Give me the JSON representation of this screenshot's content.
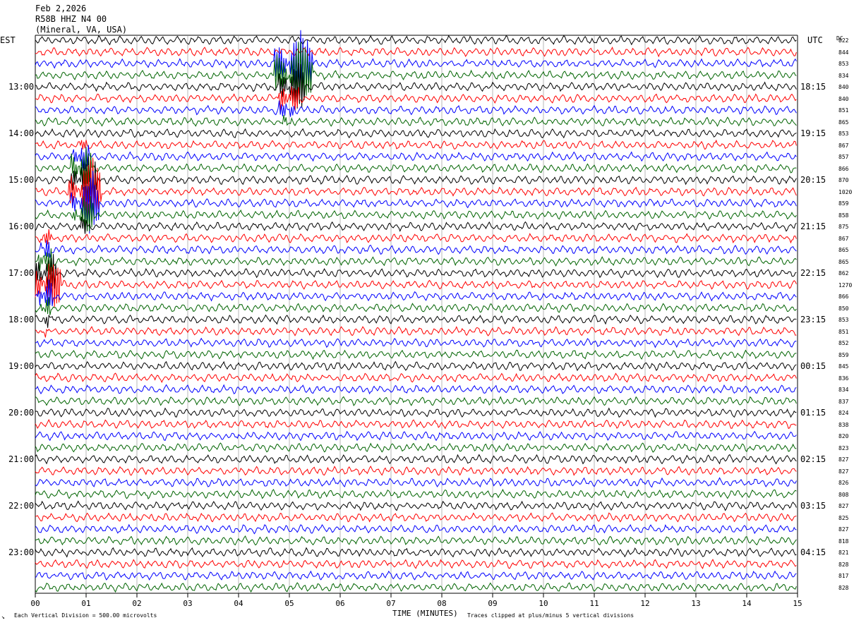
{
  "header": {
    "date": "Feb 2,2026",
    "station": "R58B HHZ N4 00",
    "location": "(Mineral, VA, USA)"
  },
  "left_tz": "EST",
  "right_tz": "UTC",
  "dc_label": "DC",
  "footer": {
    "scale_note": "Each Vertical Division =  500.00 microvolts",
    "clip_note": "Traces clipped at plus/minus 5 vertical divisions",
    "corner_mark": "↘"
  },
  "colors": {
    "trace_cycle": [
      "#000000",
      "#ff0000",
      "#0000ff",
      "#006400"
    ],
    "grid": "#888888"
  },
  "chart_data": {
    "type": "line",
    "title": "",
    "xlabel": "TIME (MINUTES)",
    "ylabel": "",
    "x_range": [
      0,
      15
    ],
    "x_ticks": [
      "00",
      "01",
      "02",
      "03",
      "04",
      "05",
      "06",
      "07",
      "08",
      "09",
      "10",
      "11",
      "12",
      "13",
      "14",
      "15"
    ],
    "rows": 48,
    "row_minutes": 15,
    "left_hour_labels": [
      "13:00",
      "14:00",
      "15:00",
      "16:00",
      "17:00",
      "18:00",
      "19:00",
      "20:00",
      "21:00",
      "22:00",
      "23:00"
    ],
    "right_hour_labels": [
      "18:15",
      "19:15",
      "20:15",
      "21:15",
      "22:15",
      "23:15",
      "00:15",
      "01:15",
      "02:15",
      "03:15",
      "04:15"
    ],
    "dc_offsets": [
      822,
      844,
      853,
      834,
      840,
      840,
      851,
      865,
      853,
      867,
      857,
      866,
      870,
      1020,
      859,
      858,
      875,
      867,
      865,
      865,
      862,
      1270,
      866,
      850,
      853,
      851,
      852,
      859,
      845,
      836,
      834,
      837,
      824,
      838,
      820,
      823,
      827,
      827,
      826,
      808,
      827,
      825,
      827,
      818,
      821,
      828,
      817,
      828
    ],
    "events": [
      {
        "row": 2,
        "start_min": 4.7,
        "end_min": 5.45,
        "amplitude_div": 5
      },
      {
        "row": 3,
        "start_min": 4.7,
        "end_min": 5.45,
        "amplitude_div": 5
      },
      {
        "row": 4,
        "start_min": 4.8,
        "end_min": 5.3,
        "amplitude_div": 5
      },
      {
        "row": 5,
        "start_min": 4.8,
        "end_min": 5.2,
        "amplitude_div": 4
      },
      {
        "row": 6,
        "start_min": 4.8,
        "end_min": 5.1,
        "amplitude_div": 3
      },
      {
        "row": 7,
        "start_min": 4.85,
        "end_min": 5.05,
        "amplitude_div": 2
      },
      {
        "row": 9,
        "start_min": 0.8,
        "end_min": 1.0,
        "amplitude_div": 2
      },
      {
        "row": 10,
        "start_min": 0.75,
        "end_min": 1.05,
        "amplitude_div": 4
      },
      {
        "row": 11,
        "start_min": 0.7,
        "end_min": 1.1,
        "amplitude_div": 5
      },
      {
        "row": 12,
        "start_min": 0.7,
        "end_min": 1.2,
        "amplitude_div": 5
      },
      {
        "row": 13,
        "start_min": 0.65,
        "end_min": 1.3,
        "amplitude_div": 5
      },
      {
        "row": 14,
        "start_min": 0.7,
        "end_min": 1.25,
        "amplitude_div": 5
      },
      {
        "row": 15,
        "start_min": 0.75,
        "end_min": 1.15,
        "amplitude_div": 4
      },
      {
        "row": 16,
        "start_min": 0.8,
        "end_min": 1.0,
        "amplitude_div": 3
      },
      {
        "row": 17,
        "start_min": 0.1,
        "end_min": 0.3,
        "amplitude_div": 3
      },
      {
        "row": 18,
        "start_min": 0.1,
        "end_min": 0.3,
        "amplitude_div": 4
      },
      {
        "row": 19,
        "start_min": 0.05,
        "end_min": 0.35,
        "amplitude_div": 5
      },
      {
        "row": 20,
        "start_min": 0.0,
        "end_min": 0.4,
        "amplitude_div": 5
      },
      {
        "row": 21,
        "start_min": 0.0,
        "end_min": 0.5,
        "amplitude_div": 5
      },
      {
        "row": 22,
        "start_min": 0.05,
        "end_min": 0.35,
        "amplitude_div": 5
      },
      {
        "row": 23,
        "start_min": 0.1,
        "end_min": 0.3,
        "amplitude_div": 4
      },
      {
        "row": 24,
        "start_min": 0.12,
        "end_min": 0.28,
        "amplitude_div": 3
      },
      {
        "row": 25,
        "start_min": 0.12,
        "end_min": 0.25,
        "amplitude_div": 2
      }
    ]
  }
}
